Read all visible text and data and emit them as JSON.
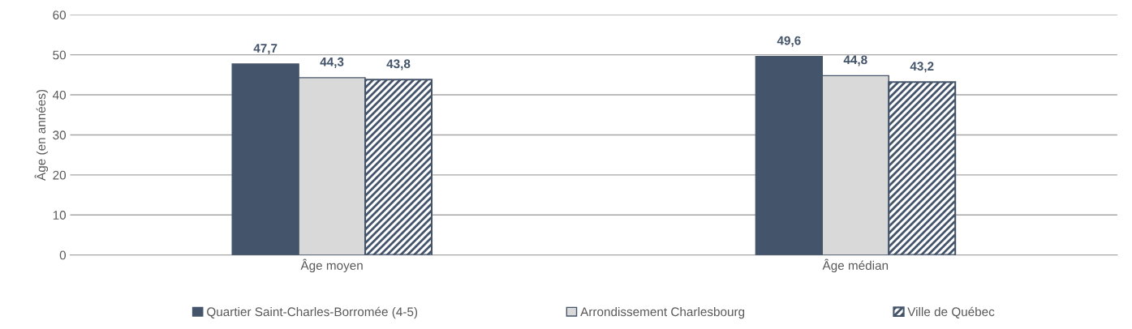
{
  "chart_data": {
    "type": "bar",
    "ylabel": "Âge (en années)",
    "categories": [
      "Âge moyen",
      "Âge médian"
    ],
    "series": [
      {
        "name": "Quartier Saint-Charles-Borromée (4-5)",
        "color": "#44546a",
        "values": [
          47.7,
          49.6
        ],
        "value_labels": [
          "47,7",
          "49,6"
        ]
      },
      {
        "name": "Arrondissement Charlesbourg",
        "color": "#d9d9d9",
        "values": [
          44.3,
          44.8
        ],
        "value_labels": [
          "44,3",
          "44,8"
        ]
      },
      {
        "name": "Ville de Québec",
        "color": "#44546a",
        "values": [
          43.8,
          43.2
        ],
        "value_labels": [
          "43,8",
          "43,2"
        ]
      }
    ],
    "ylim": [
      0,
      60
    ],
    "yticks": [
      0,
      10,
      20,
      30,
      40,
      50,
      60
    ],
    "grid": "y",
    "legend": "bottom"
  }
}
